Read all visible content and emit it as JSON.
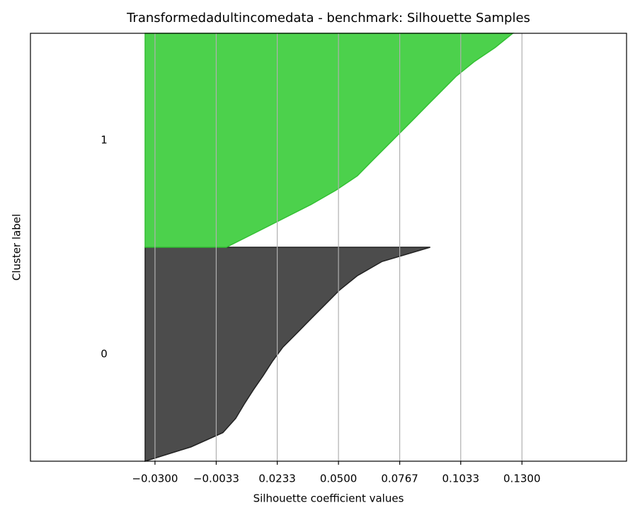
{
  "chart_data": {
    "type": "silhouette",
    "title": "Transformedadultincomedata - benchmark: Silhouette Samples",
    "x_label": "Silhouette coefficient values",
    "y_label": "Cluster label",
    "xlim": [
      -0.0843,
      0.1756
    ],
    "xticks": [
      {
        "value": -0.03,
        "label": "−0.0300"
      },
      {
        "value": -0.0033,
        "label": "−0.0033"
      },
      0.0233,
      {
        "value": 0.05,
        "label": "0.0500"
      },
      0.0767,
      0.1033,
      {
        "value": 0.13,
        "label": "0.1300"
      }
    ],
    "grid": true,
    "baseline": -0.0343,
    "series": [
      {
        "name": "0",
        "color": "#4c4c4c",
        "edge_color": "#222222",
        "values": [
          -0.0343,
          -0.0143,
          -0.0004,
          0.0052,
          0.0089,
          0.0129,
          0.0172,
          0.0212,
          0.0258,
          0.032,
          0.0381,
          0.0443,
          0.0505,
          0.0582,
          0.069,
          0.09
        ]
      },
      {
        "name": "1",
        "color": "#4cd14c",
        "edge_color": "#33c033",
        "values": [
          0.0011,
          0.0135,
          0.0258,
          0.0381,
          0.0489,
          0.0582,
          0.0643,
          0.0705,
          0.0767,
          0.0829,
          0.089,
          0.0952,
          0.1014,
          0.1091,
          0.1183,
          0.126
        ]
      }
    ]
  }
}
